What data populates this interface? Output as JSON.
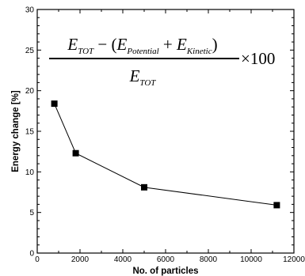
{
  "chart_data": {
    "type": "line",
    "xlabel": "No. of particles",
    "ylabel": "Energy change [%]",
    "xlim": [
      0,
      12000
    ],
    "ylim": [
      0,
      30
    ],
    "x_ticks": [
      "0",
      "2000",
      "4000",
      "6000",
      "8000",
      "10000",
      "12000"
    ],
    "y_ticks": [
      "0",
      "5",
      "10",
      "15",
      "20",
      "25",
      "30"
    ],
    "series": [
      {
        "marker": "square",
        "x": [
          800,
          1800,
          5000,
          11200
        ],
        "y": [
          18.4,
          12.3,
          8.1,
          5.9
        ]
      }
    ],
    "annotation": {
      "num_lead": "E",
      "num_lead_sub": "TOT",
      "minus": " − (",
      "term1": "E",
      "term1_sub": "Potential",
      "plus": " + ",
      "term2": "E",
      "term2_sub": "Kinetic",
      "close": ")",
      "den": "E",
      "den_sub": "TOT",
      "multiplier": "×100"
    },
    "grid": false,
    "colors": {
      "line": "#000000",
      "marker": "#000000"
    }
  }
}
